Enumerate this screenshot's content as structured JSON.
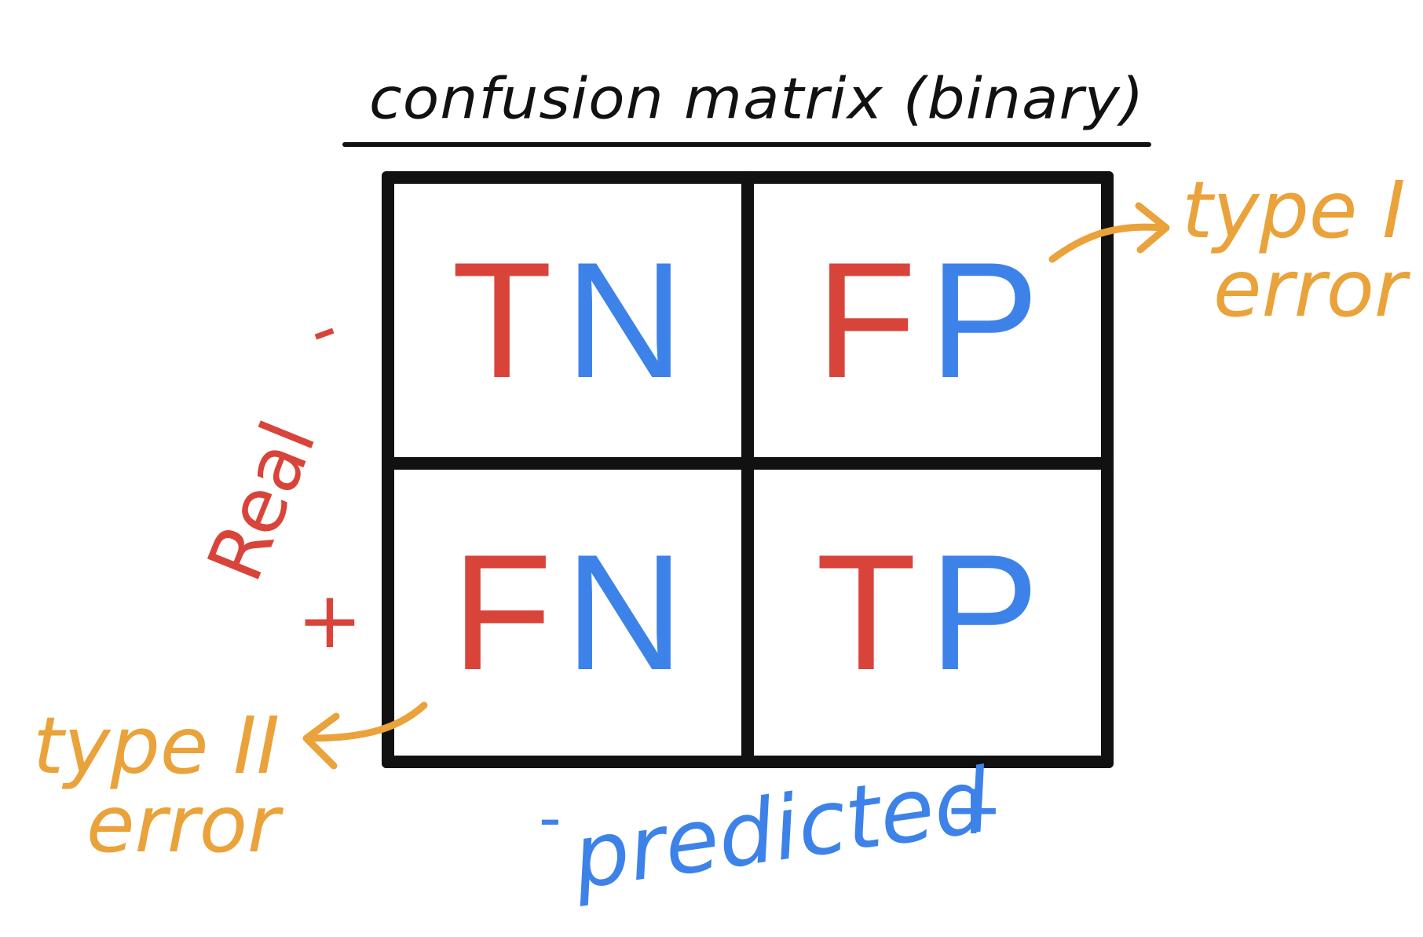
{
  "title": "confusion matrix (binary)",
  "axes": {
    "rows_label": "Real",
    "rows_minus": "-",
    "rows_plus": "+",
    "cols_label": "predicted",
    "cols_minus": "-",
    "cols_plus": "+"
  },
  "cells": [
    {
      "letters": [
        "T",
        "N"
      ]
    },
    {
      "letters": [
        "F",
        "P"
      ]
    },
    {
      "letters": [
        "F",
        "N"
      ]
    },
    {
      "letters": [
        "T",
        "P"
      ]
    }
  ],
  "annotations": {
    "type1": {
      "line1": "type I",
      "line2": "error"
    },
    "type2": {
      "line1": "type II",
      "line2": "error"
    }
  },
  "colors": {
    "ink": "#111111",
    "red": "#d9443a",
    "blue": "#3d82e8",
    "orange": "#eaa23a"
  }
}
